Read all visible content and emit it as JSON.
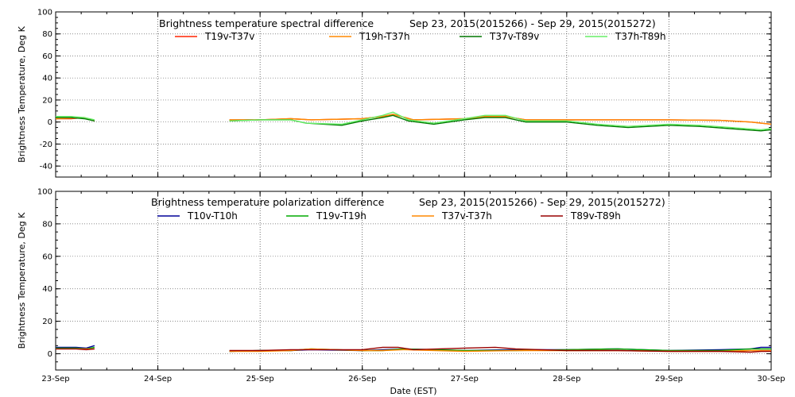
{
  "chart_data": [
    {
      "type": "line",
      "title": "Brightness temperature spectral difference",
      "date_range": "Sep 23, 2015(2015266) - Sep 29, 2015(2015272)",
      "ylabel": "Brightness Temperature, Deg K",
      "ylim": [
        -50,
        100
      ],
      "yticks": [
        -40,
        -20,
        0,
        20,
        40,
        60,
        80,
        100
      ],
      "xlim": [
        0,
        7
      ],
      "grid": true,
      "legend_position": "top",
      "series": [
        {
          "name": "T19v-T37v",
          "color": "#ff2200",
          "points": [
            [
              0,
              3
            ],
            [
              0.15,
              3
            ],
            [
              0.28,
              4
            ],
            [
              0.38,
              1
            ],
            [
              0,
              0
            ],
            [
              1.7,
              2
            ],
            [
              2.0,
              2
            ],
            [
              2.3,
              3
            ],
            [
              2.5,
              2
            ],
            [
              3.0,
              3
            ],
            [
              3.2,
              5
            ],
            [
              3.3,
              7
            ],
            [
              3.42,
              4
            ],
            [
              3.5,
              2
            ],
            [
              4.0,
              3
            ],
            [
              4.2,
              5
            ],
            [
              4.4,
              5
            ],
            [
              4.6,
              2
            ],
            [
              5.0,
              2
            ],
            [
              5.5,
              2
            ],
            [
              6.0,
              2
            ],
            [
              6.5,
              1.5
            ],
            [
              6.8,
              0
            ],
            [
              6.9,
              -1
            ],
            [
              7.0,
              -2
            ]
          ]
        },
        {
          "name": "T19h-T37h",
          "color": "#ff8800",
          "points": [
            [
              0,
              3
            ],
            [
              0.15,
              3.5
            ],
            [
              0.28,
              4
            ],
            [
              0.38,
              1
            ],
            [
              0,
              0
            ],
            [
              1.7,
              2
            ],
            [
              2.0,
              2
            ],
            [
              2.3,
              3
            ],
            [
              2.5,
              2
            ],
            [
              3.0,
              3
            ],
            [
              3.2,
              5
            ],
            [
              3.3,
              7
            ],
            [
              3.42,
              4
            ],
            [
              3.5,
              2
            ],
            [
              4.0,
              3
            ],
            [
              4.2,
              5
            ],
            [
              4.4,
              5
            ],
            [
              4.6,
              2
            ],
            [
              5.0,
              2
            ],
            [
              5.5,
              2
            ],
            [
              6.0,
              2
            ],
            [
              6.5,
              1.5
            ],
            [
              6.8,
              0
            ],
            [
              6.9,
              -1
            ],
            [
              7.0,
              -2
            ]
          ]
        },
        {
          "name": "T37v-T89v",
          "color": "#007700",
          "points": [
            [
              0,
              4
            ],
            [
              0.15,
              4
            ],
            [
              0.28,
              3
            ],
            [
              0.38,
              1
            ],
            [
              0,
              0
            ],
            [
              1.7,
              1
            ],
            [
              2.0,
              2
            ],
            [
              2.3,
              2
            ],
            [
              2.45,
              -1
            ],
            [
              2.8,
              -3
            ],
            [
              3.0,
              1
            ],
            [
              3.2,
              4
            ],
            [
              3.3,
              6
            ],
            [
              3.45,
              1
            ],
            [
              3.7,
              -2
            ],
            [
              4.0,
              2
            ],
            [
              4.2,
              4
            ],
            [
              4.4,
              4
            ],
            [
              4.6,
              0
            ],
            [
              5.0,
              0
            ],
            [
              5.3,
              -3
            ],
            [
              5.6,
              -5
            ],
            [
              6.0,
              -3
            ],
            [
              6.3,
              -4
            ],
            [
              6.6,
              -6
            ],
            [
              6.9,
              -8
            ],
            [
              7.0,
              -7
            ]
          ]
        },
        {
          "name": "T37h-T89h",
          "color": "#66ee66",
          "points": [
            [
              0,
              5
            ],
            [
              0.15,
              5
            ],
            [
              0.28,
              4
            ],
            [
              0.38,
              2
            ],
            [
              0,
              0
            ],
            [
              1.7,
              1
            ],
            [
              2.0,
              2
            ],
            [
              2.3,
              2
            ],
            [
              2.45,
              -1
            ],
            [
              2.8,
              -2
            ],
            [
              3.0,
              2
            ],
            [
              3.2,
              6
            ],
            [
              3.3,
              9
            ],
            [
              3.45,
              2
            ],
            [
              3.7,
              -1
            ],
            [
              4.0,
              3
            ],
            [
              4.2,
              6
            ],
            [
              4.4,
              6
            ],
            [
              4.6,
              1
            ],
            [
              5.0,
              1
            ],
            [
              5.3,
              -2
            ],
            [
              5.6,
              -4
            ],
            [
              6.0,
              -2
            ],
            [
              6.3,
              -3
            ],
            [
              6.6,
              -5
            ],
            [
              6.9,
              -7
            ],
            [
              7.0,
              -6
            ]
          ]
        }
      ]
    },
    {
      "type": "line",
      "title": "Brightness temperature polarization difference",
      "date_range": "Sep 23, 2015(2015266) - Sep 29, 2015(2015272)",
      "ylabel": "Brightness Temperature, Deg K",
      "ylim": [
        -10,
        100
      ],
      "yticks": [
        0,
        20,
        40,
        60,
        80,
        100
      ],
      "xlim": [
        0,
        7
      ],
      "grid": true,
      "legend_position": "top",
      "series": [
        {
          "name": "T10v-T10h",
          "color": "#000099",
          "points": [
            [
              0,
              4
            ],
            [
              0.2,
              4
            ],
            [
              0.3,
              3.5
            ],
            [
              0.38,
              5
            ],
            [
              0,
              0
            ],
            [
              1.7,
              1.5
            ],
            [
              2.0,
              2
            ],
            [
              2.3,
              2
            ],
            [
              2.5,
              2.5
            ],
            [
              3.0,
              2
            ],
            [
              3.2,
              2.5
            ],
            [
              3.4,
              3
            ],
            [
              4.0,
              2
            ],
            [
              4.5,
              2.5
            ],
            [
              5.0,
              2.5
            ],
            [
              5.5,
              3
            ],
            [
              6.0,
              2
            ],
            [
              6.5,
              2.5
            ],
            [
              6.8,
              3
            ],
            [
              6.9,
              4
            ],
            [
              7.0,
              4
            ]
          ]
        },
        {
          "name": "T19v-T19h",
          "color": "#00aa00",
          "points": [
            [
              0,
              3.5
            ],
            [
              0.2,
              3.5
            ],
            [
              0.3,
              3
            ],
            [
              0.38,
              4
            ],
            [
              0,
              0
            ],
            [
              1.7,
              1.5
            ],
            [
              2.0,
              2
            ],
            [
              2.3,
              2
            ],
            [
              2.5,
              3
            ],
            [
              3.0,
              2
            ],
            [
              3.2,
              2
            ],
            [
              3.4,
              3
            ],
            [
              4.0,
              2
            ],
            [
              4.5,
              2
            ],
            [
              5.0,
              2.5
            ],
            [
              5.5,
              3
            ],
            [
              6.0,
              2
            ],
            [
              6.5,
              2
            ],
            [
              6.8,
              3
            ],
            [
              6.9,
              3
            ],
            [
              7.0,
              3
            ]
          ]
        },
        {
          "name": "T37v-T37h",
          "color": "#ff8800",
          "points": [
            [
              0,
              3
            ],
            [
              0.2,
              3
            ],
            [
              0.3,
              3
            ],
            [
              0.38,
              3
            ],
            [
              0,
              0
            ],
            [
              1.7,
              1.5
            ],
            [
              2.0,
              1.5
            ],
            [
              2.3,
              2
            ],
            [
              2.5,
              3
            ],
            [
              3.0,
              2
            ],
            [
              3.2,
              2
            ],
            [
              3.4,
              2.5
            ],
            [
              4.0,
              1.5
            ],
            [
              4.5,
              2
            ],
            [
              5.0,
              2
            ],
            [
              5.5,
              2
            ],
            [
              6.0,
              1.5
            ],
            [
              6.5,
              1.5
            ],
            [
              6.8,
              2
            ],
            [
              6.9,
              2
            ],
            [
              7.0,
              2
            ]
          ]
        },
        {
          "name": "T89v-T89h",
          "color": "#990000",
          "points": [
            [
              0,
              3
            ],
            [
              0.2,
              3
            ],
            [
              0.3,
              2.5
            ],
            [
              0.38,
              3
            ],
            [
              0,
              0
            ],
            [
              1.7,
              2
            ],
            [
              2.0,
              2
            ],
            [
              2.3,
              2.5
            ],
            [
              2.5,
              2.5
            ],
            [
              3.0,
              2.5
            ],
            [
              3.2,
              4
            ],
            [
              3.35,
              4
            ],
            [
              3.5,
              2.5
            ],
            [
              4.0,
              3.5
            ],
            [
              4.3,
              4
            ],
            [
              4.5,
              3
            ],
            [
              5.0,
              2
            ],
            [
              5.5,
              2
            ],
            [
              6.0,
              1.5
            ],
            [
              6.5,
              1.5
            ],
            [
              6.8,
              1
            ],
            [
              6.9,
              1.5
            ],
            [
              7.0,
              1.5
            ]
          ]
        }
      ]
    }
  ],
  "shared_x": {
    "xlabel": "Date (EST)",
    "tick_labels": [
      "23-Sep",
      "24-Sep",
      "25-Sep",
      "26-Sep",
      "27-Sep",
      "28-Sep",
      "29-Sep",
      "30-Sep"
    ]
  }
}
